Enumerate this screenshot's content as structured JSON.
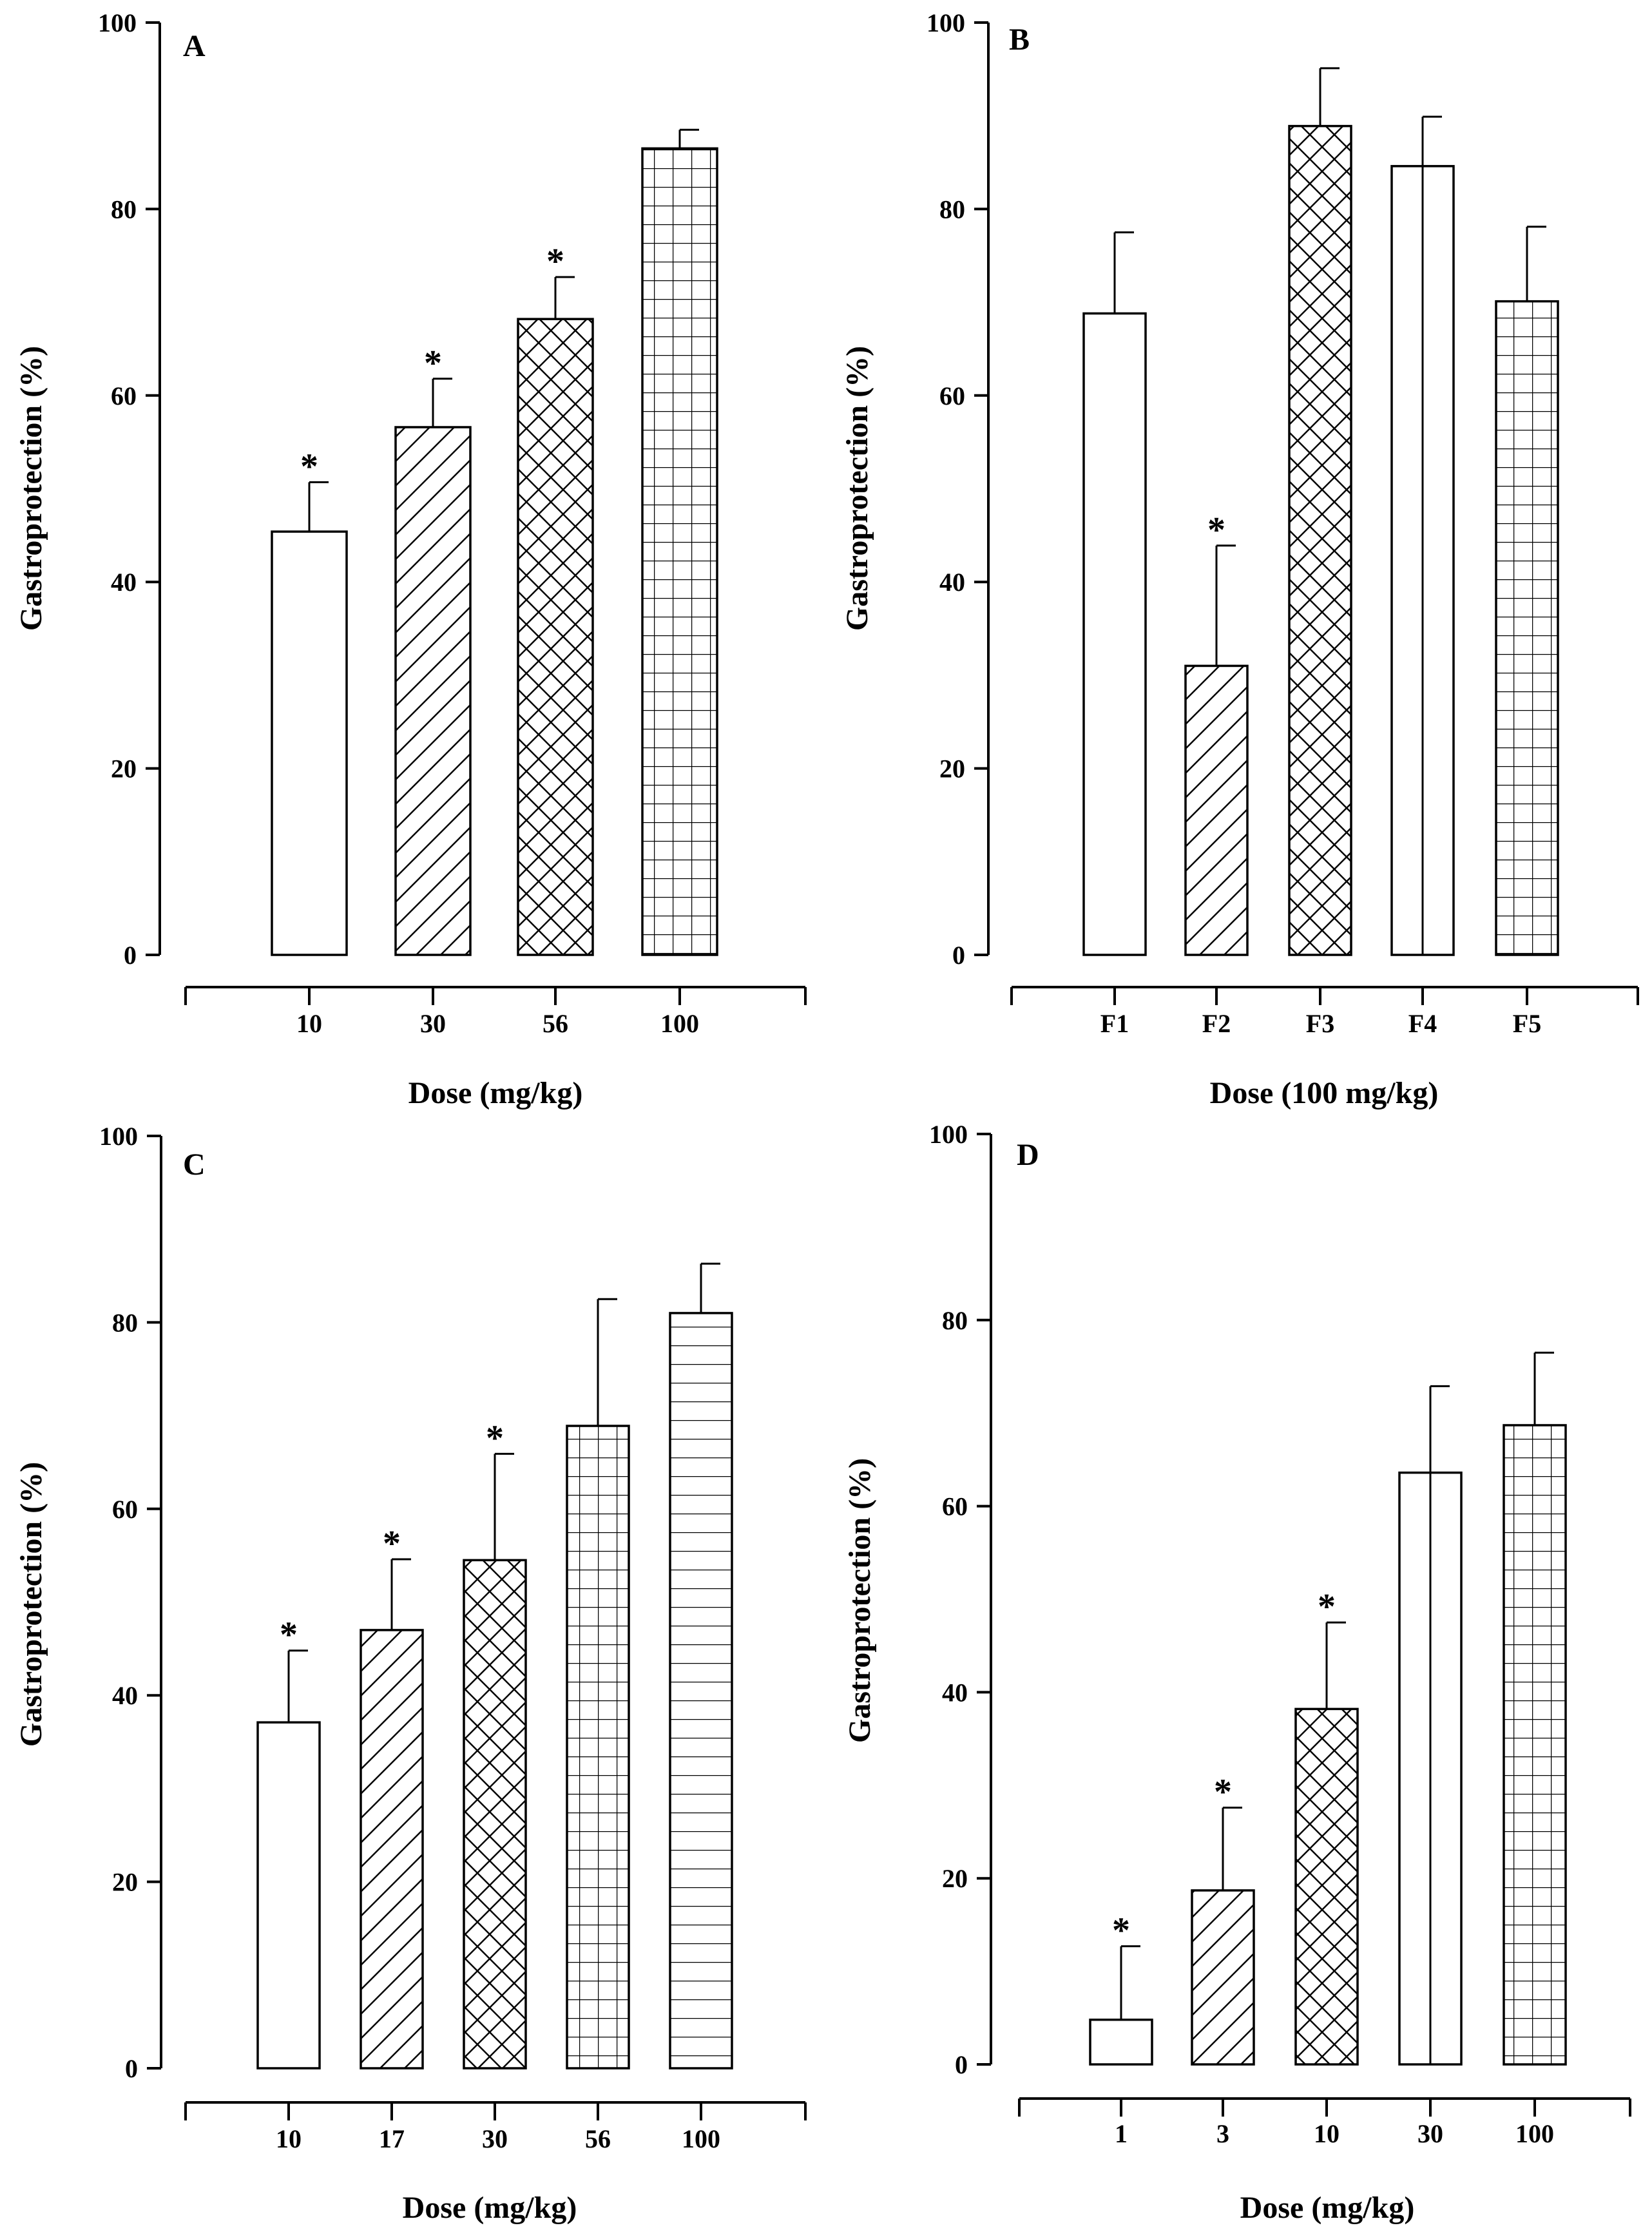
{
  "figure": {
    "panels": [
      {
        "label": "A",
        "xlabel": "Dose (mg/kg)",
        "ylabel": "Gastroprotection (%)"
      },
      {
        "label": "B",
        "xlabel": "Dose (100 mg/kg)",
        "ylabel": "Gastroprotection (%)"
      },
      {
        "label": "C",
        "xlabel": "Dose (mg/kg)",
        "ylabel": "Gastroprotection (%)"
      },
      {
        "label": "D",
        "xlabel": "Dose (mg/kg)",
        "ylabel": "Gastroprotection (%)"
      }
    ]
  },
  "chart_data": [
    {
      "type": "bar",
      "panel": "A",
      "categories": [
        "10",
        "30",
        "56",
        "100"
      ],
      "values": [
        45.4,
        56.6,
        68.2,
        86.5
      ],
      "error": [
        5.3,
        5.2,
        4.5,
        2.0
      ],
      "significant": [
        true,
        true,
        true,
        false
      ],
      "patterns": [
        "none",
        "diag",
        "cross",
        "grid"
      ],
      "significance_marker": "*",
      "xlabel": "Dose (mg/kg)",
      "ylabel": "Gastroprotection (%)",
      "ylim": [
        0,
        100
      ],
      "yticks": [
        0,
        20,
        40,
        60,
        80,
        100
      ],
      "grid": false
    },
    {
      "type": "bar",
      "panel": "B",
      "categories": [
        "F1",
        "F2",
        "F3",
        "F4",
        "F5"
      ],
      "values": [
        68.8,
        31.0,
        88.9,
        84.6,
        70.1
      ],
      "error": [
        8.7,
        12.9,
        6.2,
        5.3,
        8.0
      ],
      "significant": [
        false,
        true,
        false,
        false,
        false
      ],
      "patterns": [
        "none",
        "diag",
        "cross",
        "vline",
        "grid"
      ],
      "significance_marker": "*",
      "xlabel": "Dose (100 mg/kg)",
      "ylabel": "Gastroprotection (%)",
      "ylim": [
        0,
        100
      ],
      "yticks": [
        0,
        20,
        40,
        60,
        80,
        100
      ],
      "grid": false
    },
    {
      "type": "bar",
      "panel": "C",
      "categories": [
        "10",
        "17",
        "30",
        "56",
        "100"
      ],
      "values": [
        37.1,
        47.0,
        54.5,
        68.9,
        81.0
      ],
      "error": [
        7.7,
        7.6,
        11.4,
        13.6,
        5.3
      ],
      "significant": [
        true,
        true,
        true,
        false,
        false
      ],
      "patterns": [
        "none",
        "diag",
        "cross",
        "grid",
        "hline"
      ],
      "significance_marker": "*",
      "xlabel": "Dose (mg/kg)",
      "ylabel": "Gastroprotection (%)",
      "ylim": [
        0,
        100
      ],
      "yticks": [
        0,
        20,
        40,
        60,
        80,
        100
      ],
      "grid": false
    },
    {
      "type": "bar",
      "panel": "D",
      "categories": [
        "1",
        "3",
        "10",
        "30",
        "100"
      ],
      "values": [
        4.8,
        18.7,
        38.2,
        63.6,
        68.7
      ],
      "error": [
        7.9,
        8.9,
        9.3,
        9.3,
        7.8
      ],
      "significant": [
        true,
        true,
        true,
        false,
        false
      ],
      "patterns": [
        "none",
        "diag",
        "cross",
        "vline",
        "grid"
      ],
      "significance_marker": "*",
      "xlabel": "Dose (mg/kg)",
      "ylabel": "Gastroprotection (%)",
      "ylim": [
        0,
        100
      ],
      "yticks": [
        0,
        20,
        40,
        60,
        80,
        100
      ],
      "grid": false
    }
  ]
}
